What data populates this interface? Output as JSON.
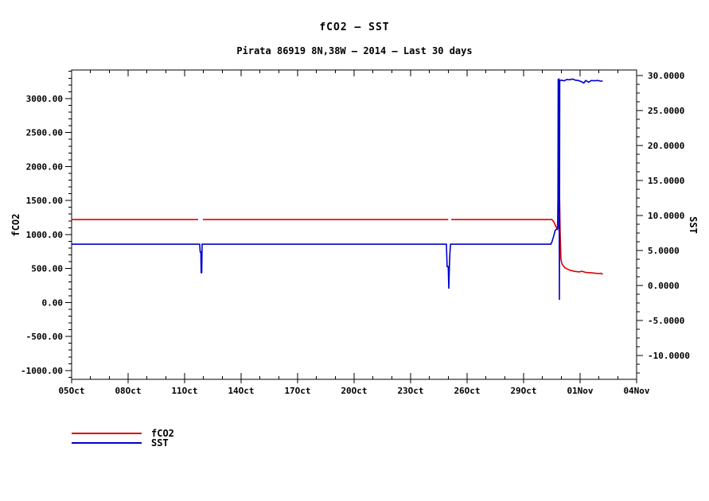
{
  "chart_data": {
    "type": "line",
    "title": "fCO2 — SST",
    "subtitle": "Pirata 86919 8N,38W — 2014 — Last 30 days",
    "x_axis": {
      "range_days": [
        5,
        35
      ],
      "major_ticks": [
        {
          "day": 5,
          "label": "05Oct"
        },
        {
          "day": 8,
          "label": "08Oct"
        },
        {
          "day": 11,
          "label": "11Oct"
        },
        {
          "day": 14,
          "label": "14Oct"
        },
        {
          "day": 17,
          "label": "17Oct"
        },
        {
          "day": 20,
          "label": "20Oct"
        },
        {
          "day": 23,
          "label": "23Oct"
        },
        {
          "day": 26,
          "label": "26Oct"
        },
        {
          "day": 29,
          "label": "29Oct"
        },
        {
          "day": 32,
          "label": "01Nov"
        },
        {
          "day": 35,
          "label": "04Nov"
        }
      ],
      "minor_step_days": 1
    },
    "left_axis": {
      "label": "fCO2",
      "range": [
        -1130,
        3420
      ],
      "major_ticks": [
        {
          "value": 3000,
          "label": "3000.00"
        },
        {
          "value": 2500,
          "label": "2500.00"
        },
        {
          "value": 2000,
          "label": "2000.00"
        },
        {
          "value": 1500,
          "label": "1500.00"
        },
        {
          "value": 1000,
          "label": "1000.00"
        },
        {
          "value": 500,
          "label": "500.00"
        },
        {
          "value": 0,
          "label": "0.00"
        },
        {
          "value": -500,
          "label": "-500.00"
        },
        {
          "value": -1000,
          "label": "-1000.00"
        }
      ],
      "minor_step": 100
    },
    "right_axis": {
      "label": "SST",
      "range": [
        -13.4,
        30.8
      ],
      "major_ticks": [
        {
          "value": 30,
          "label": "30.0000"
        },
        {
          "value": 25,
          "label": "25.0000"
        },
        {
          "value": 20,
          "label": "20.0000"
        },
        {
          "value": 15,
          "label": "15.0000"
        },
        {
          "value": 10,
          "label": "10.0000"
        },
        {
          "value": 5,
          "label": "5.0000"
        },
        {
          "value": 0,
          "label": "0.0000"
        },
        {
          "value": -5,
          "label": "-5.0000"
        },
        {
          "value": -10,
          "label": "-10.0000"
        }
      ],
      "minor_step": 1.25
    },
    "series": [
      {
        "name": "fCO2",
        "color": "#dd0000",
        "axis": "left",
        "segments": [
          [
            [
              5.0,
              1220
            ],
            [
              11.72,
              1220
            ]
          ],
          [
            [
              11.97,
              1220
            ],
            [
              25.0,
              1220
            ]
          ],
          [
            [
              25.16,
              1220
            ],
            [
              30.5,
              1220
            ],
            [
              30.6,
              1190
            ],
            [
              30.72,
              1115
            ],
            [
              30.8,
              1080
            ],
            [
              30.84,
              1620
            ],
            [
              30.87,
              1320
            ],
            [
              30.9,
              1700
            ],
            [
              30.94,
              1050
            ],
            [
              30.98,
              640
            ],
            [
              31.05,
              560
            ],
            [
              31.2,
              510
            ],
            [
              31.45,
              475
            ],
            [
              31.7,
              458
            ],
            [
              31.95,
              450
            ],
            [
              32.1,
              460
            ],
            [
              32.3,
              442
            ],
            [
              32.55,
              438
            ],
            [
              32.8,
              430
            ],
            [
              33.0,
              424
            ],
            [
              33.1,
              430
            ],
            [
              33.2,
              414
            ]
          ]
        ]
      },
      {
        "name": "SST",
        "color": "#0000cc",
        "axis": "right",
        "segments": [
          [
            [
              5.0,
              5.9
            ],
            [
              11.8,
              5.9
            ],
            [
              11.83,
              4.8
            ],
            [
              11.86,
              4.8
            ],
            [
              11.88,
              1.85
            ],
            [
              11.91,
              1.85
            ],
            [
              11.93,
              5.9
            ],
            [
              24.9,
              5.9
            ],
            [
              24.94,
              2.7
            ],
            [
              25.0,
              2.7
            ],
            [
              25.03,
              -0.45
            ],
            [
              25.06,
              2.9
            ],
            [
              25.09,
              4.8
            ],
            [
              25.12,
              5.9
            ],
            [
              30.45,
              5.9
            ],
            [
              30.5,
              6.2
            ],
            [
              30.58,
              6.9
            ],
            [
              30.68,
              7.9
            ],
            [
              30.78,
              8.1
            ],
            [
              30.82,
              8.15
            ],
            [
              30.84,
              29.45
            ],
            [
              30.88,
              29.5
            ],
            [
              30.9,
              -2.05
            ],
            [
              30.92,
              29.3
            ],
            [
              31.0,
              29.35
            ],
            [
              31.15,
              29.25
            ],
            [
              31.3,
              29.45
            ],
            [
              31.45,
              29.4
            ],
            [
              31.6,
              29.5
            ],
            [
              31.75,
              29.35
            ],
            [
              31.9,
              29.3
            ],
            [
              32.05,
              29.15
            ],
            [
              32.2,
              28.95
            ],
            [
              32.3,
              29.3
            ],
            [
              32.45,
              29.05
            ],
            [
              32.6,
              29.3
            ],
            [
              32.75,
              29.25
            ],
            [
              32.95,
              29.3
            ],
            [
              33.1,
              29.2
            ],
            [
              33.2,
              29.25
            ]
          ]
        ]
      }
    ],
    "legend": {
      "position": "bottom-left",
      "entries": [
        "fCO2",
        "SST"
      ]
    },
    "axis_color": "#000000",
    "background_color": "#ffffff",
    "grid": false
  }
}
